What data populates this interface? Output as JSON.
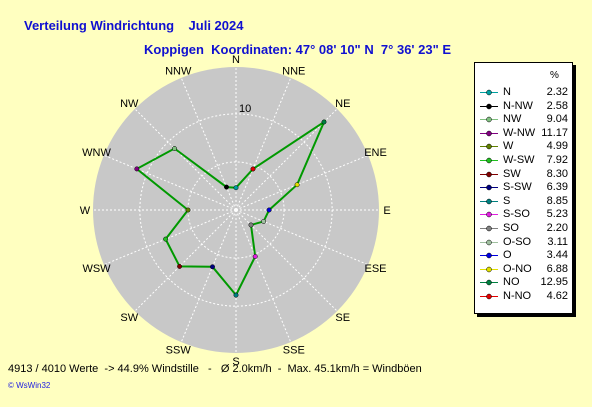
{
  "header": {
    "title": "Verteilung Windrichtung    Juli 2024",
    "subtitle": "Koppigen  Koordinaten: 47° 08' 10\" N  7° 36' 23\" E"
  },
  "legend": {
    "header": "%"
  },
  "footer": {
    "stats": "4913 / 4010 Werte  -> 44.9% Windstille   -   Ø 2.0km/h  -  Max. 45.1km/h = Windböen",
    "credit": "© WsWin32"
  },
  "colors": {
    "background": "#ffffc0",
    "plot_disc": "#c8c8c8",
    "series_line": "#009900",
    "title_text": "#1010d0"
  },
  "chart_data": {
    "type": "radar",
    "title": "Verteilung Windrichtung    Juli 2024",
    "directions": [
      "N",
      "NNE",
      "NE",
      "ENE",
      "E",
      "ESE",
      "SE",
      "SSE",
      "S",
      "SSW",
      "SW",
      "WSW",
      "W",
      "WNW",
      "NW",
      "NNW"
    ],
    "r_max": 13,
    "r_tick_label": "10",
    "r_tick_value": 10,
    "values": [
      2.32,
      4.62,
      12.95,
      6.88,
      3.44,
      3.11,
      2.2,
      5.23,
      8.85,
      6.39,
      8.3,
      7.92,
      4.99,
      11.17,
      9.04,
      2.58
    ],
    "legend_entries": [
      {
        "label": "N",
        "value": "2.32",
        "color": "#00a0a0"
      },
      {
        "label": "N-NW",
        "value": "2.58",
        "color": "#000000"
      },
      {
        "label": "NW",
        "value": "9.04",
        "color": "#80c080"
      },
      {
        "label": "W-NW",
        "value": "11.17",
        "color": "#800080"
      },
      {
        "label": "W",
        "value": "4.99",
        "color": "#608000"
      },
      {
        "label": "W-SW",
        "value": "7.92",
        "color": "#20c020"
      },
      {
        "label": "SW",
        "value": "8.30",
        "color": "#800000"
      },
      {
        "label": "S-SW",
        "value": "6.39",
        "color": "#000080"
      },
      {
        "label": "S",
        "value": "8.85",
        "color": "#008080"
      },
      {
        "label": "S-SO",
        "value": "5.23",
        "color": "#e020e0"
      },
      {
        "label": "SO",
        "value": "2.20",
        "color": "#808080"
      },
      {
        "label": "O-SO",
        "value": "3.11",
        "color": "#a0c0a0"
      },
      {
        "label": "O",
        "value": "3.44",
        "color": "#0000e0"
      },
      {
        "label": "O-NO",
        "value": "6.88",
        "color": "#e0e000"
      },
      {
        "label": "NO",
        "value": "12.95",
        "color": "#008040"
      },
      {
        "label": "N-NO",
        "value": "4.62",
        "color": "#e00000"
      }
    ],
    "point_colors": [
      "#00a0a0",
      "#e00000",
      "#008040",
      "#e0e000",
      "#0000e0",
      "#a0c0a0",
      "#808080",
      "#e020e0",
      "#008080",
      "#000080",
      "#800000",
      "#20c020",
      "#608000",
      "#800080",
      "#80c080",
      "#000000"
    ]
  }
}
